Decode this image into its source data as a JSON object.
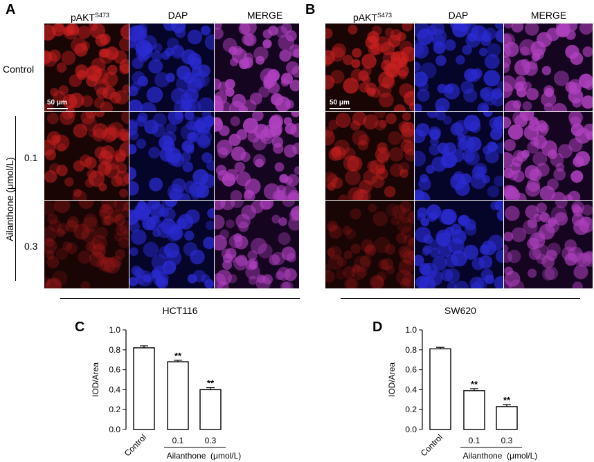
{
  "figure": {
    "panels": {
      "A": "A",
      "B": "B",
      "C": "C",
      "D": "D"
    },
    "column_labels": {
      "pakt_base": "pAKT",
      "pakt_sup": "S473",
      "dapi": "DAP",
      "merge": "MERGE"
    },
    "row_labels": {
      "control": "Control",
      "dose1": "0.1",
      "dose2": "0.3",
      "treatment_axis": "Ailanthone  (μmol/L)"
    },
    "scale_bar": "50 μm",
    "cell_lines": {
      "left": "HCT116",
      "right": "SW620"
    },
    "colors": {
      "red_channel": "#cc2020",
      "blue_channel": "#2a2ad0",
      "merge_channel": "#b040c0"
    }
  },
  "chart_data": [
    {
      "type": "bar",
      "panel": "C",
      "categories": [
        "Control",
        "0.1",
        "0.3"
      ],
      "values": [
        0.82,
        0.68,
        0.4
      ],
      "errors": [
        0.02,
        0.015,
        0.02
      ],
      "significance": [
        "",
        "**",
        "**"
      ],
      "ylabel": "IOD/Area",
      "xlabel": "Ailanthone  (μmol/L)",
      "ylim": [
        0,
        1.0
      ],
      "yticks": [
        "0.0",
        "0.2",
        "0.4",
        "0.6",
        "0.8",
        "1.0"
      ]
    },
    {
      "type": "bar",
      "panel": "D",
      "categories": [
        "Control",
        "0.1",
        "0.3"
      ],
      "values": [
        0.81,
        0.39,
        0.23
      ],
      "errors": [
        0.015,
        0.02,
        0.02
      ],
      "significance": [
        "",
        "**",
        "**"
      ],
      "ylabel": "IOD/Area",
      "xlabel": "Ailanthone  (μmol/L)",
      "ylim": [
        0,
        1.0
      ],
      "yticks": [
        "0.0",
        "0.2",
        "0.4",
        "0.6",
        "0.8",
        "1.0"
      ]
    }
  ]
}
